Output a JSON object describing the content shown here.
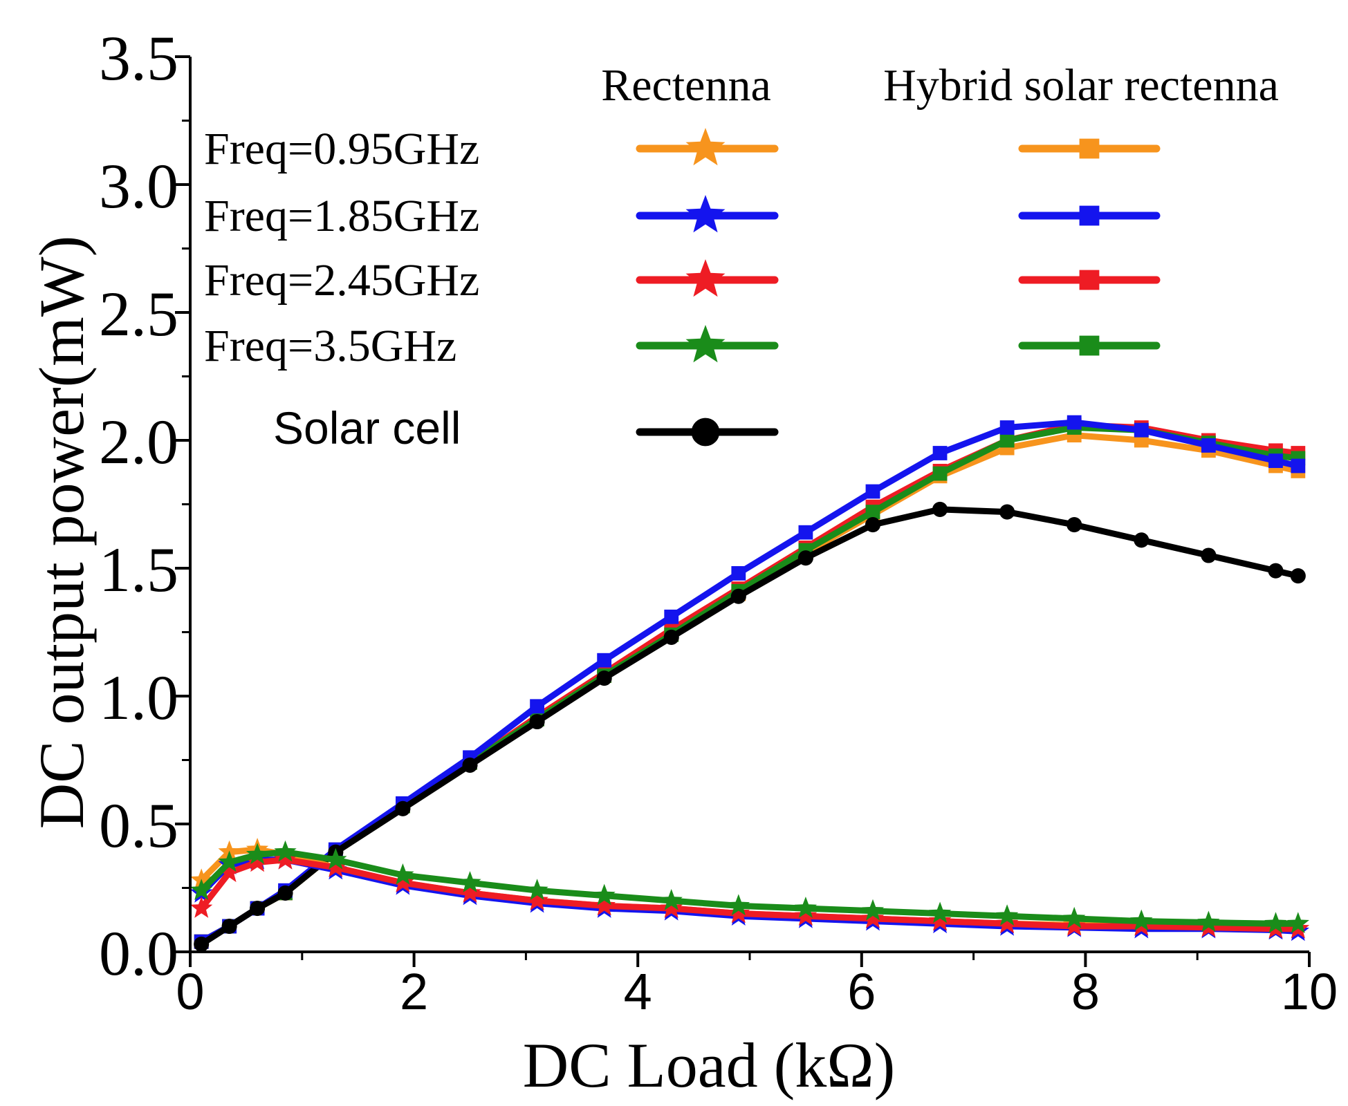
{
  "chart_data": {
    "type": "line",
    "xlabel": "DC Load (kΩ)",
    "ylabel": "DC output power(mW)",
    "xlim": [
      0,
      10
    ],
    "ylim": [
      0,
      3.5
    ],
    "x_ticks": [
      "0",
      "2",
      "4",
      "6",
      "8",
      "10"
    ],
    "y_ticks": [
      "0.0",
      "0.5",
      "1.0",
      "1.5",
      "2.0",
      "2.5",
      "3.0",
      "3.5"
    ],
    "grid": false,
    "legend": {
      "placement": "top",
      "header_rectenna": "Rectenna",
      "header_hybrid": "Hybrid solar rectenna",
      "rows": [
        {
          "label": "Freq=0.95GHz",
          "color": "#f7941d"
        },
        {
          "label": "Freq=1.85GHz",
          "color": "#1414ee"
        },
        {
          "label": "Freq=2.45GHz",
          "color": "#ee1c24"
        },
        {
          "label": "Freq=3.5GHz",
          "color": "#1a8c1a"
        }
      ],
      "solar_label": "Solar cell",
      "solar_color": "#000000"
    },
    "x": [
      0.1,
      0.35,
      0.6,
      0.85,
      1.3,
      1.9,
      2.5,
      3.1,
      3.7,
      4.3,
      4.9,
      5.5,
      6.1,
      6.7,
      7.3,
      7.9,
      8.5,
      9.1,
      9.7,
      9.9
    ],
    "series": [
      {
        "name": "Rectenna Freq=0.95GHz",
        "group": "rectenna",
        "color": "#f7941d",
        "marker": "star",
        "values": [
          0.28,
          0.39,
          0.4,
          0.38,
          0.33,
          0.27,
          0.23,
          0.2,
          0.18,
          0.17,
          0.15,
          0.14,
          0.13,
          0.12,
          0.11,
          0.105,
          0.1,
          0.095,
          0.09,
          0.09
        ]
      },
      {
        "name": "Rectenna Freq=1.85GHz",
        "group": "rectenna",
        "color": "#1414ee",
        "marker": "star",
        "values": [
          0.23,
          0.34,
          0.36,
          0.36,
          0.32,
          0.26,
          0.22,
          0.19,
          0.17,
          0.16,
          0.14,
          0.13,
          0.12,
          0.11,
          0.1,
          0.095,
          0.09,
          0.09,
          0.085,
          0.08
        ]
      },
      {
        "name": "Rectenna Freq=2.45GHz",
        "group": "rectenna",
        "color": "#ee1c24",
        "marker": "star",
        "values": [
          0.17,
          0.31,
          0.35,
          0.36,
          0.33,
          0.27,
          0.23,
          0.2,
          0.18,
          0.17,
          0.15,
          0.14,
          0.13,
          0.12,
          0.11,
          0.1,
          0.1,
          0.095,
          0.09,
          0.09
        ]
      },
      {
        "name": "Rectenna Freq=3.5GHz",
        "group": "rectenna",
        "color": "#1a8c1a",
        "marker": "star",
        "values": [
          0.24,
          0.35,
          0.38,
          0.39,
          0.36,
          0.3,
          0.27,
          0.24,
          0.22,
          0.2,
          0.18,
          0.17,
          0.16,
          0.15,
          0.14,
          0.13,
          0.12,
          0.115,
          0.11,
          0.11
        ]
      },
      {
        "name": "Hybrid Freq=0.95GHz",
        "group": "hybrid",
        "color": "#f7941d",
        "marker": "square",
        "values": [
          0.04,
          0.1,
          0.17,
          0.23,
          0.39,
          0.57,
          0.74,
          0.91,
          1.08,
          1.24,
          1.4,
          1.56,
          1.71,
          1.86,
          1.97,
          2.02,
          2.0,
          1.96,
          1.9,
          1.88
        ]
      },
      {
        "name": "Hybrid Freq=1.85GHz",
        "group": "hybrid",
        "color": "#1414ee",
        "marker": "square",
        "values": [
          0.04,
          0.1,
          0.17,
          0.24,
          0.4,
          0.58,
          0.76,
          0.96,
          1.14,
          1.31,
          1.48,
          1.64,
          1.8,
          1.95,
          2.05,
          2.07,
          2.04,
          1.98,
          1.92,
          1.9
        ]
      },
      {
        "name": "Hybrid Freq=2.45GHz",
        "group": "hybrid",
        "color": "#ee1c24",
        "marker": "square",
        "values": [
          0.04,
          0.1,
          0.17,
          0.23,
          0.39,
          0.57,
          0.74,
          0.92,
          1.09,
          1.26,
          1.42,
          1.58,
          1.74,
          1.88,
          2.0,
          2.06,
          2.05,
          2.0,
          1.96,
          1.95
        ]
      },
      {
        "name": "Hybrid Freq=3.5GHz",
        "group": "hybrid",
        "color": "#1a8c1a",
        "marker": "square",
        "values": [
          0.04,
          0.1,
          0.17,
          0.23,
          0.39,
          0.57,
          0.74,
          0.91,
          1.08,
          1.24,
          1.41,
          1.57,
          1.72,
          1.87,
          2.0,
          2.05,
          2.04,
          1.99,
          1.94,
          1.93
        ]
      },
      {
        "name": "Solar cell",
        "group": "solar",
        "color": "#000000",
        "marker": "circle",
        "values": [
          0.03,
          0.1,
          0.17,
          0.23,
          0.39,
          0.56,
          0.73,
          0.9,
          1.07,
          1.23,
          1.39,
          1.54,
          1.67,
          1.73,
          1.72,
          1.67,
          1.61,
          1.55,
          1.49,
          1.47
        ]
      }
    ]
  }
}
